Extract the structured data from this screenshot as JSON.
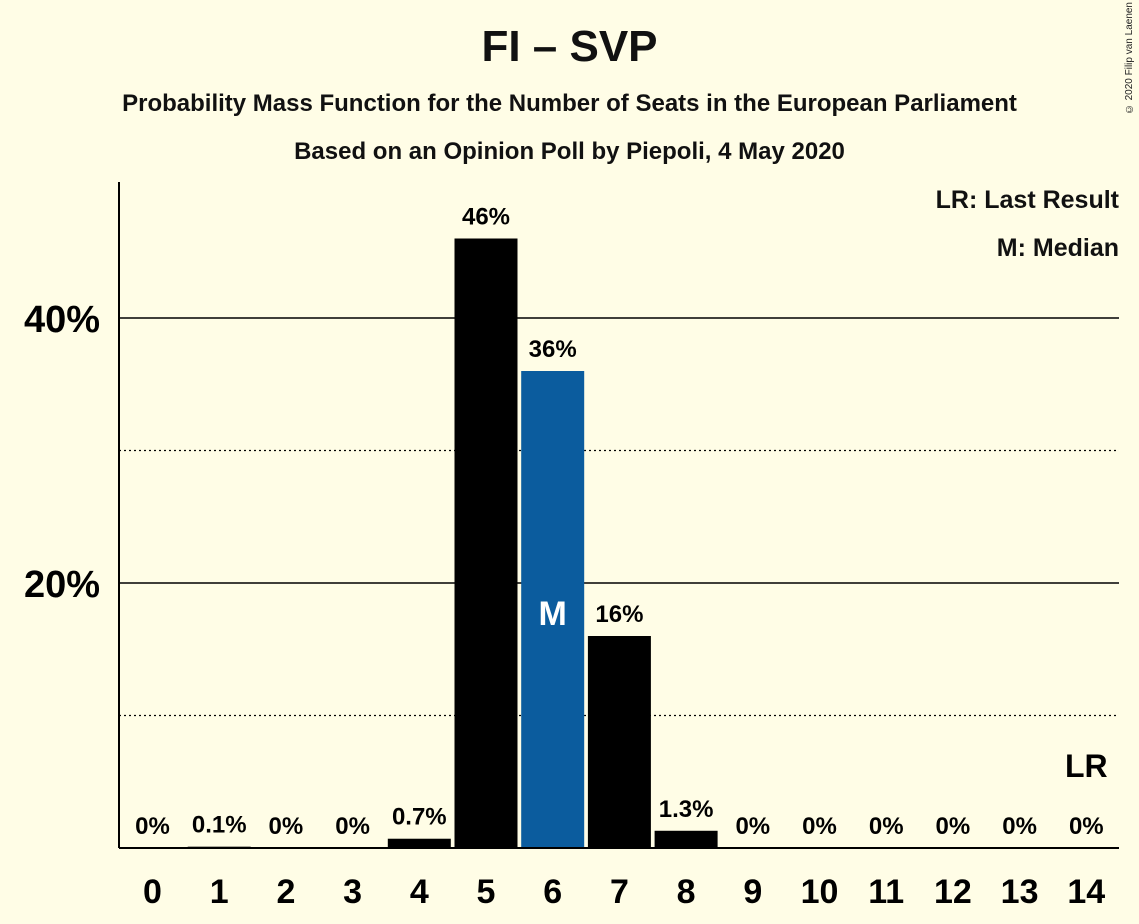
{
  "title": "FI – SVP",
  "subtitle1": "Probability Mass Function for the Number of Seats in the European Parliament",
  "subtitle2": "Based on an Opinion Poll by Piepoli, 4 May 2020",
  "copyright": "© 2020 Filip van Laenen",
  "legend": {
    "last_result": "LR: Last Result",
    "median": "M: Median"
  },
  "colors": {
    "background": "#fffde6",
    "bar_default": "#000000",
    "bar_median": "#0b5c9e",
    "axis": "#000000"
  },
  "chart_data": {
    "type": "bar",
    "categories": [
      "0",
      "1",
      "2",
      "3",
      "4",
      "5",
      "6",
      "7",
      "8",
      "9",
      "10",
      "11",
      "12",
      "13",
      "14"
    ],
    "values": [
      0,
      0.1,
      0,
      0,
      0.7,
      46,
      36,
      16,
      1.3,
      0,
      0,
      0,
      0,
      0,
      0
    ],
    "value_labels": [
      "0%",
      "0.1%",
      "0%",
      "0%",
      "0.7%",
      "46%",
      "36%",
      "16%",
      "1.3%",
      "0%",
      "0%",
      "0%",
      "0%",
      "0%",
      "0%"
    ],
    "ylim": [
      0,
      50
    ],
    "yticks": [
      {
        "value": 20,
        "label": "20%",
        "style": "solid"
      },
      {
        "value": 40,
        "label": "40%",
        "style": "solid"
      }
    ],
    "minor_gridlines": [
      10,
      30
    ],
    "median_index": 6,
    "median_label": "M",
    "last_result_index": 14,
    "last_result_label": "LR"
  }
}
